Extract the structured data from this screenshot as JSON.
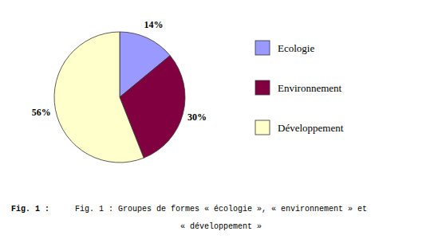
{
  "chart_data": {
    "type": "pie",
    "categories": [
      "Ecologie",
      "Environnement",
      "Développement"
    ],
    "values": [
      14,
      30,
      56
    ],
    "value_labels": [
      "14%",
      "30%",
      "56%"
    ],
    "colors": [
      "#9999ff",
      "#800040",
      "#ffffcc"
    ],
    "data_labels": true,
    "legend": "right",
    "annotations": [
      "Fig. 1 :  Groupes de formes « écologie », « environnement » et",
      "« développement »",
      "Fig. 1 :"
    ]
  }
}
